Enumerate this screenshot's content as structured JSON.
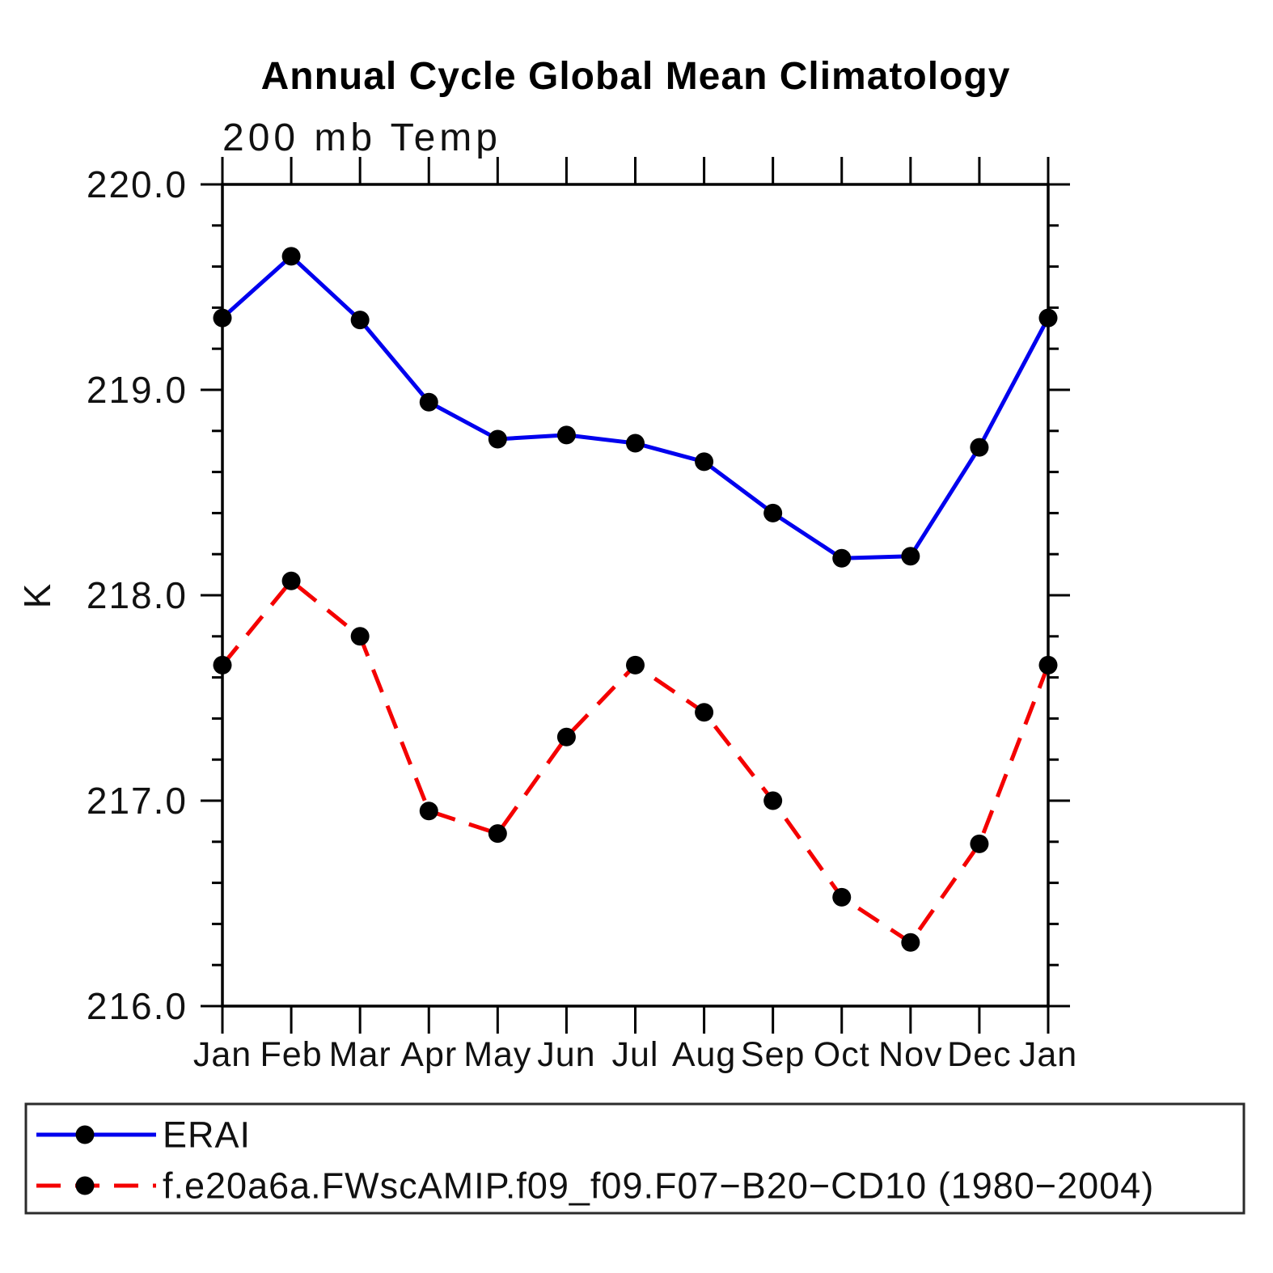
{
  "title": "Annual Cycle Global Mean Climatology",
  "chart_data": {
    "type": "line",
    "title": "Annual Cycle Global Mean Climatology",
    "subtitle": "200 mb Temp",
    "ylabel": "K",
    "xlabel": "",
    "categories": [
      "Jan",
      "Feb",
      "Mar",
      "Apr",
      "May",
      "Jun",
      "Jul",
      "Aug",
      "Sep",
      "Oct",
      "Nov",
      "Dec",
      "Jan"
    ],
    "ylim": [
      216.0,
      220.0
    ],
    "ytick_major_interval": 1.0,
    "ytick_minor_interval": 0.2,
    "ytick_labels": [
      "220.0",
      "219.0",
      "218.0",
      "217.0",
      "216.0"
    ],
    "grid": false,
    "legend_position": "bottom-box",
    "marker": {
      "shape": "circle",
      "color": "#000000"
    },
    "series": [
      {
        "name": "ERAI",
        "color": "#0000ee",
        "style": "solid",
        "values": [
          219.35,
          219.65,
          219.34,
          218.94,
          218.76,
          218.78,
          218.74,
          218.65,
          218.4,
          218.18,
          218.19,
          218.72,
          219.35
        ]
      },
      {
        "name": "f.e20a6a.FWscAMIP.f09_f09.F07−B20−CD10 (1980−2004)",
        "color": "#f40000",
        "style": "dashed",
        "values": [
          217.66,
          218.07,
          217.8,
          216.95,
          216.84,
          217.31,
          217.66,
          217.43,
          217.0,
          216.53,
          216.31,
          216.79,
          217.66
        ]
      }
    ]
  }
}
